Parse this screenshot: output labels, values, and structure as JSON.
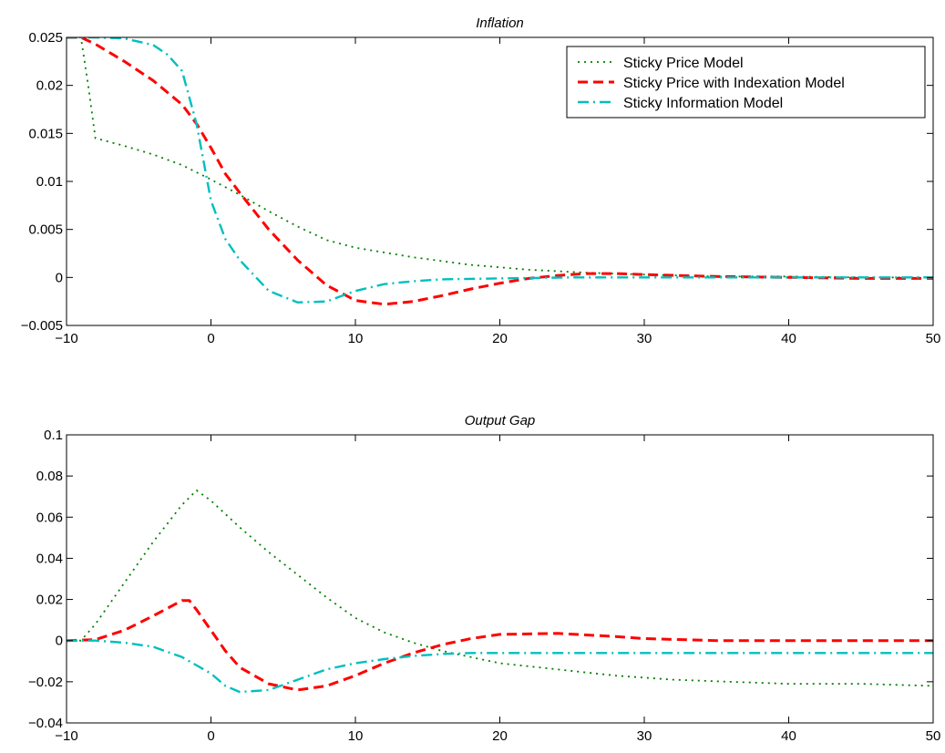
{
  "chart_data": [
    {
      "type": "line",
      "title": "Inflation",
      "xlabel": "",
      "ylabel": "",
      "xlim": [
        -10,
        50
      ],
      "ylim": [
        -0.005,
        0.025
      ],
      "xticks": [
        -10,
        0,
        10,
        20,
        30,
        40,
        50
      ],
      "xtick_labels": [
        "−10",
        "0",
        "10",
        "20",
        "30",
        "40",
        "50"
      ],
      "yticks": [
        -0.005,
        0,
        0.005,
        0.01,
        0.015,
        0.02,
        0.025
      ],
      "ytick_labels": [
        "−0.005",
        "0",
        "0.005",
        "0.01",
        "0.015",
        "0.02",
        "0.025"
      ],
      "grid": false,
      "legend": {
        "placement": "top-right",
        "entries": [
          "Sticky Price Model",
          "Sticky Price with Indexation Model",
          "Sticky Information Model"
        ]
      },
      "series": [
        {
          "name": "Sticky Price Model",
          "color": "#008000",
          "style": "dotted",
          "points": [
            [
              -10,
              0.025
            ],
            [
              -9,
              0.025
            ],
            [
              -8.5,
              0.02
            ],
            [
              -8,
              0.0145
            ],
            [
              -6,
              0.0137
            ],
            [
              -4,
              0.0128
            ],
            [
              -2,
              0.0117
            ],
            [
              0,
              0.0102
            ],
            [
              2,
              0.0086
            ],
            [
              4,
              0.0069
            ],
            [
              6,
              0.0053
            ],
            [
              8,
              0.0039
            ],
            [
              10,
              0.0031
            ],
            [
              14,
              0.0021
            ],
            [
              18,
              0.0013
            ],
            [
              22,
              0.0008
            ],
            [
              26,
              0.0005
            ],
            [
              30,
              0.0003
            ],
            [
              35,
              0.0001
            ],
            [
              40,
              0.0001
            ],
            [
              45,
              0.0
            ],
            [
              50,
              0.0
            ]
          ]
        },
        {
          "name": "Sticky Price with Indexation Model",
          "color": "#ff0000",
          "style": "dashed",
          "points": [
            [
              -10,
              0.025
            ],
            [
              -9,
              0.025
            ],
            [
              -8,
              0.0243
            ],
            [
              -6,
              0.0225
            ],
            [
              -4,
              0.0205
            ],
            [
              -2,
              0.018
            ],
            [
              -1,
              0.016
            ],
            [
              0,
              0.0135
            ],
            [
              1,
              0.0108
            ],
            [
              2,
              0.0088
            ],
            [
              4,
              0.005
            ],
            [
              6,
              0.0018
            ],
            [
              8,
              -0.0008
            ],
            [
              10,
              -0.0024
            ],
            [
              12,
              -0.0028
            ],
            [
              14,
              -0.0025
            ],
            [
              16,
              -0.0019
            ],
            [
              18,
              -0.0012
            ],
            [
              20,
              -0.0006
            ],
            [
              22,
              -0.0001
            ],
            [
              24,
              0.0002
            ],
            [
              26,
              0.0004
            ],
            [
              28,
              0.0004
            ],
            [
              30,
              0.0003
            ],
            [
              35,
              0.0001
            ],
            [
              40,
              0.0
            ],
            [
              45,
              -0.0001
            ],
            [
              50,
              -0.0001
            ]
          ]
        },
        {
          "name": "Sticky Information Model",
          "color": "#00bfbf",
          "style": "dashdot",
          "points": [
            [
              -10,
              0.025
            ],
            [
              -8,
              0.025
            ],
            [
              -6,
              0.0249
            ],
            [
              -4,
              0.0242
            ],
            [
              -3,
              0.0232
            ],
            [
              -2,
              0.0215
            ],
            [
              -1,
              0.016
            ],
            [
              0,
              0.008
            ],
            [
              1,
              0.004
            ],
            [
              2,
              0.0018
            ],
            [
              4,
              -0.0014
            ],
            [
              6,
              -0.0026
            ],
            [
              8,
              -0.0025
            ],
            [
              10,
              -0.0014
            ],
            [
              12,
              -0.0007
            ],
            [
              14,
              -0.0004
            ],
            [
              16,
              -0.0002
            ],
            [
              20,
              -0.0001
            ],
            [
              25,
              0.0
            ],
            [
              30,
              0.0
            ],
            [
              40,
              0.0
            ],
            [
              50,
              0.0
            ]
          ]
        }
      ]
    },
    {
      "type": "line",
      "title": "Output Gap",
      "xlabel": "",
      "ylabel": "",
      "xlim": [
        -10,
        50
      ],
      "ylim": [
        -0.04,
        0.1
      ],
      "xticks": [
        -10,
        0,
        10,
        20,
        30,
        40,
        50
      ],
      "xtick_labels": [
        "−10",
        "0",
        "10",
        "20",
        "30",
        "40",
        "50"
      ],
      "yticks": [
        -0.04,
        -0.02,
        0,
        0.02,
        0.04,
        0.06,
        0.08,
        0.1
      ],
      "ytick_labels": [
        "−0.04",
        "−0.02",
        "0",
        "0.02",
        "0.04",
        "0.06",
        "0.08",
        "0.1"
      ],
      "grid": false,
      "series": [
        {
          "name": "Sticky Price Model",
          "color": "#008000",
          "style": "dotted",
          "points": [
            [
              -10,
              0.0
            ],
            [
              -9,
              0.0
            ],
            [
              -8,
              0.008
            ],
            [
              -6,
              0.028
            ],
            [
              -4,
              0.048
            ],
            [
              -2,
              0.066
            ],
            [
              -1,
              0.073
            ],
            [
              0,
              0.068
            ],
            [
              2,
              0.055
            ],
            [
              4,
              0.043
            ],
            [
              6,
              0.032
            ],
            [
              8,
              0.021
            ],
            [
              10,
              0.011
            ],
            [
              12,
              0.004
            ],
            [
              14,
              -0.001
            ],
            [
              16,
              -0.005
            ],
            [
              18,
              -0.008
            ],
            [
              20,
              -0.011
            ],
            [
              24,
              -0.014
            ],
            [
              28,
              -0.017
            ],
            [
              32,
              -0.019
            ],
            [
              36,
              -0.02
            ],
            [
              40,
              -0.021
            ],
            [
              45,
              -0.021
            ],
            [
              50,
              -0.022
            ]
          ]
        },
        {
          "name": "Sticky Price with Indexation Model",
          "color": "#ff0000",
          "style": "dashed",
          "points": [
            [
              -10,
              0.0
            ],
            [
              -8,
              0.0005
            ],
            [
              -6,
              0.005
            ],
            [
              -4,
              0.012
            ],
            [
              -2,
              0.0195
            ],
            [
              -1.5,
              0.0195
            ],
            [
              -1,
              0.015
            ],
            [
              0,
              0.005
            ],
            [
              1,
              -0.005
            ],
            [
              2,
              -0.013
            ],
            [
              4,
              -0.021
            ],
            [
              6,
              -0.024
            ],
            [
              8,
              -0.022
            ],
            [
              10,
              -0.017
            ],
            [
              12,
              -0.011
            ],
            [
              14,
              -0.006
            ],
            [
              16,
              -0.002
            ],
            [
              18,
              0.001
            ],
            [
              20,
              0.003
            ],
            [
              24,
              0.0035
            ],
            [
              28,
              0.002
            ],
            [
              30,
              0.001
            ],
            [
              35,
              0.0
            ],
            [
              40,
              0.0
            ],
            [
              50,
              0.0
            ]
          ]
        },
        {
          "name": "Sticky Information Model",
          "color": "#00bfbf",
          "style": "dashdot",
          "points": [
            [
              -10,
              0.0
            ],
            [
              -8,
              0.0
            ],
            [
              -6,
              -0.001
            ],
            [
              -4,
              -0.003
            ],
            [
              -2,
              -0.008
            ],
            [
              0,
              -0.016
            ],
            [
              1,
              -0.022
            ],
            [
              2,
              -0.025
            ],
            [
              4,
              -0.024
            ],
            [
              6,
              -0.019
            ],
            [
              8,
              -0.014
            ],
            [
              10,
              -0.011
            ],
            [
              12,
              -0.009
            ],
            [
              14,
              -0.0075
            ],
            [
              16,
              -0.0065
            ],
            [
              18,
              -0.006
            ],
            [
              20,
              -0.006
            ],
            [
              30,
              -0.006
            ],
            [
              40,
              -0.006
            ],
            [
              50,
              -0.006
            ]
          ]
        }
      ]
    }
  ]
}
